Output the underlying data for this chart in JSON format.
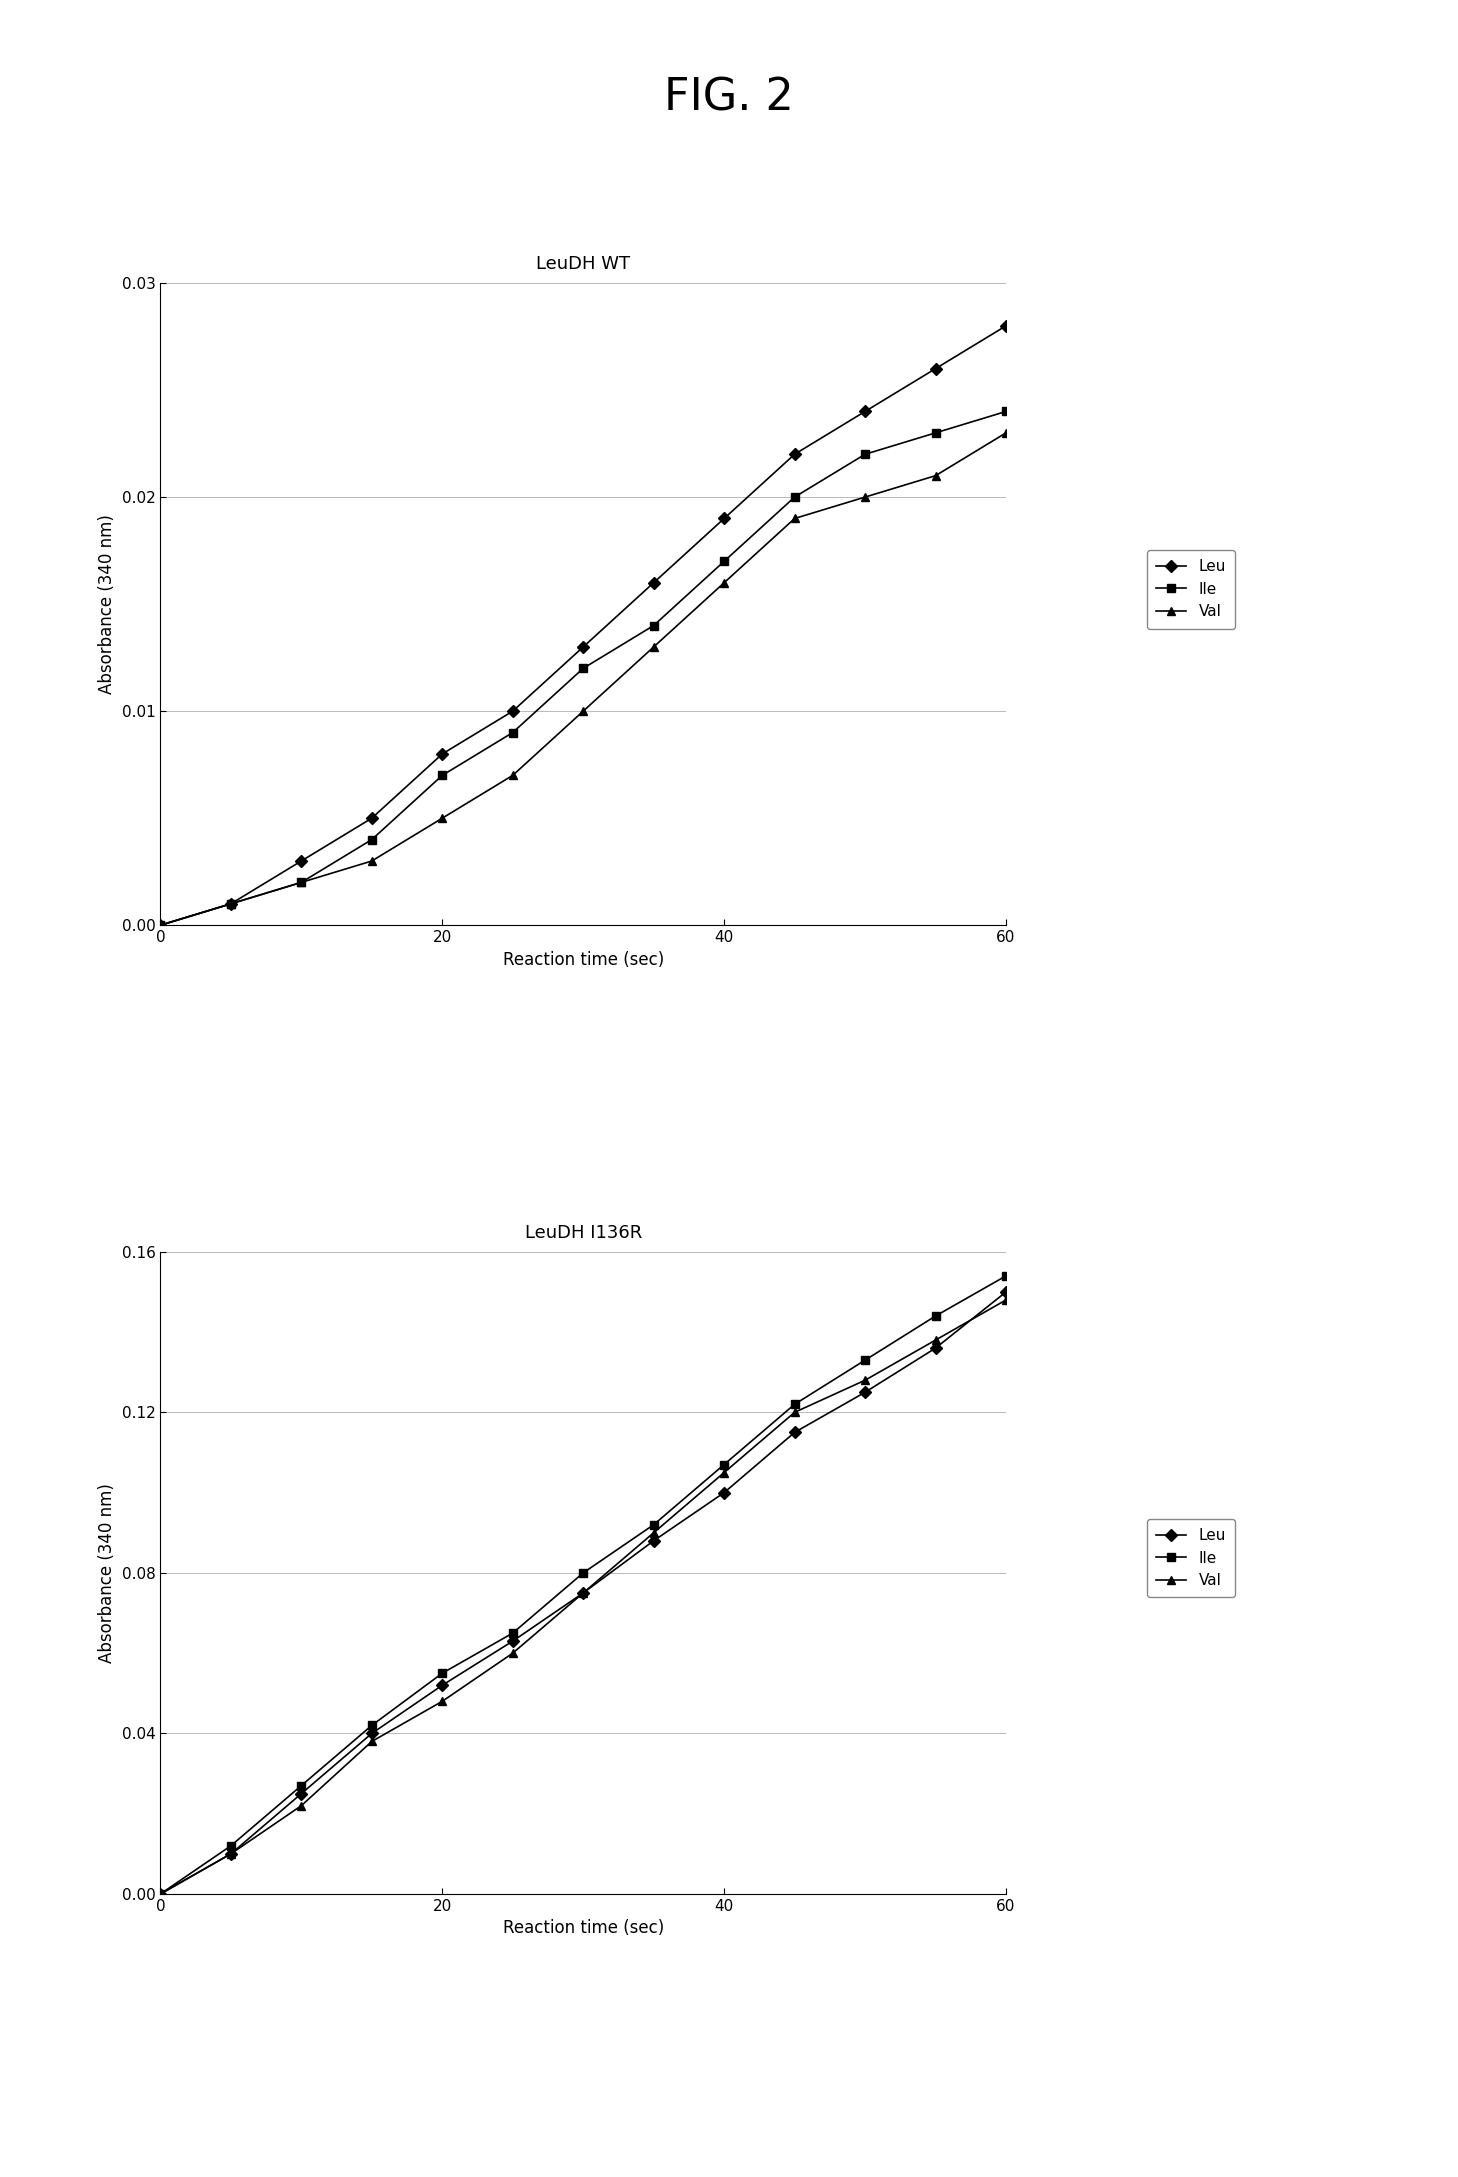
{
  "fig_title": "FIG. 2",
  "fig_title_fontsize": 32,
  "fig_title_fontweight": "normal",
  "plot1": {
    "title": "LeuDH WT",
    "title_fontsize": 13,
    "xlabel": "Reaction time (sec)",
    "ylabel": "Absorbance (340 nm)",
    "xlim": [
      0,
      60
    ],
    "ylim": [
      0.0,
      0.03
    ],
    "yticks": [
      0.0,
      0.01,
      0.02,
      0.03
    ],
    "xticks": [
      0,
      20,
      40,
      60
    ],
    "series": {
      "Leu": {
        "x": [
          0,
          5,
          10,
          15,
          20,
          25,
          30,
          35,
          40,
          45,
          50,
          55,
          60
        ],
        "y": [
          0.0,
          0.001,
          0.003,
          0.005,
          0.008,
          0.01,
          0.013,
          0.016,
          0.019,
          0.022,
          0.024,
          0.026,
          0.028
        ],
        "marker": "D",
        "color": "#000000",
        "markersize": 6
      },
      "Ile": {
        "x": [
          0,
          5,
          10,
          15,
          20,
          25,
          30,
          35,
          40,
          45,
          50,
          55,
          60
        ],
        "y": [
          0.0,
          0.001,
          0.002,
          0.004,
          0.007,
          0.009,
          0.012,
          0.014,
          0.017,
          0.02,
          0.022,
          0.023,
          0.024
        ],
        "marker": "s",
        "color": "#000000",
        "markersize": 6
      },
      "Val": {
        "x": [
          0,
          5,
          10,
          15,
          20,
          25,
          30,
          35,
          40,
          45,
          50,
          55,
          60
        ],
        "y": [
          0.0,
          0.001,
          0.002,
          0.003,
          0.005,
          0.007,
          0.01,
          0.013,
          0.016,
          0.019,
          0.02,
          0.021,
          0.023
        ],
        "marker": "^",
        "color": "#000000",
        "markersize": 6
      }
    }
  },
  "plot2": {
    "title": "LeuDH I136R",
    "title_fontsize": 13,
    "xlabel": "Reaction time (sec)",
    "ylabel": "Absorbance (340 nm)",
    "xlim": [
      0,
      60
    ],
    "ylim": [
      0.0,
      0.16
    ],
    "yticks": [
      0.0,
      0.04,
      0.08,
      0.12,
      0.16
    ],
    "xticks": [
      0,
      20,
      40,
      60
    ],
    "series": {
      "Leu": {
        "x": [
          0,
          5,
          10,
          15,
          20,
          25,
          30,
          35,
          40,
          45,
          50,
          55,
          60
        ],
        "y": [
          0.0,
          0.01,
          0.025,
          0.04,
          0.052,
          0.063,
          0.075,
          0.088,
          0.1,
          0.115,
          0.125,
          0.136,
          0.15
        ],
        "marker": "D",
        "color": "#000000",
        "markersize": 6
      },
      "Ile": {
        "x": [
          0,
          5,
          10,
          15,
          20,
          25,
          30,
          35,
          40,
          45,
          50,
          55,
          60
        ],
        "y": [
          0.0,
          0.012,
          0.027,
          0.042,
          0.055,
          0.065,
          0.08,
          0.092,
          0.107,
          0.122,
          0.133,
          0.144,
          0.154
        ],
        "marker": "s",
        "color": "#000000",
        "markersize": 6
      },
      "Val": {
        "x": [
          0,
          5,
          10,
          15,
          20,
          25,
          30,
          35,
          40,
          45,
          50,
          55,
          60
        ],
        "y": [
          0.0,
          0.01,
          0.022,
          0.038,
          0.048,
          0.06,
          0.075,
          0.09,
          0.105,
          0.12,
          0.128,
          0.138,
          0.148
        ],
        "marker": "^",
        "color": "#000000",
        "markersize": 6
      }
    }
  },
  "legend_fontsize": 11,
  "axis_label_fontsize": 12,
  "tick_label_fontsize": 11,
  "line_width": 1.2,
  "grid_color": "#b0b0b0",
  "grid_linewidth": 0.6,
  "background_color": "#ffffff"
}
